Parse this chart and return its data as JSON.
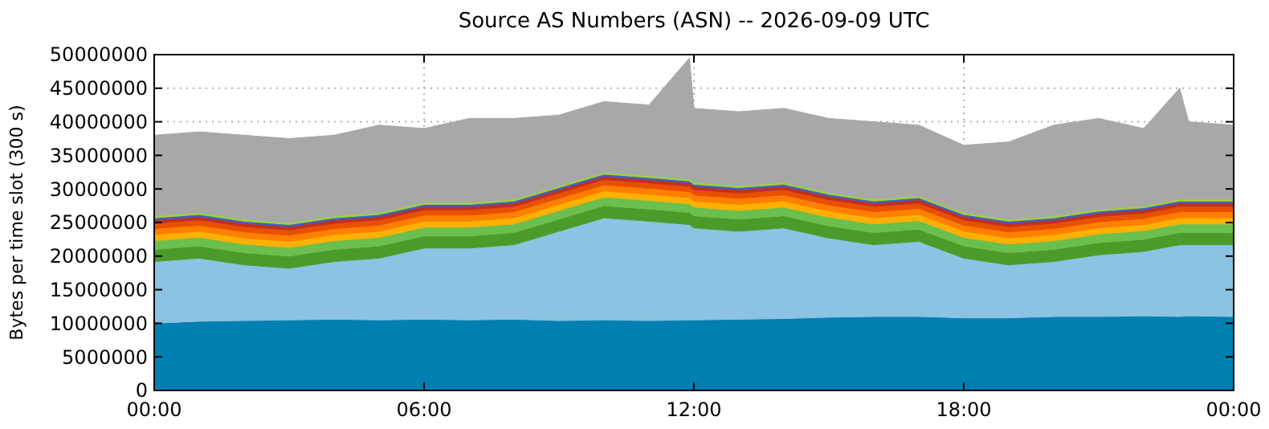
{
  "chart_data": {
    "type": "area",
    "stacked": true,
    "title": "Source AS Numbers (ASN) -- 2026-09-09 UTC",
    "ylabel": "Bytes per time slot (300 s)",
    "x": [
      0,
      1,
      2,
      3,
      4,
      5,
      6,
      7,
      8,
      9,
      10,
      11,
      11.9,
      12,
      13,
      14,
      15,
      16,
      17,
      18,
      19,
      20,
      21,
      22,
      22.8,
      23,
      24
    ],
    "xlim": [
      0,
      24
    ],
    "xticks": [
      {
        "value": 0,
        "label": "00:00"
      },
      {
        "value": 6,
        "label": "06:00"
      },
      {
        "value": 12,
        "label": "12:00"
      },
      {
        "value": 18,
        "label": "18:00"
      },
      {
        "value": 24,
        "label": "00:00"
      }
    ],
    "ylim": [
      0,
      50000000
    ],
    "yticks": [
      0,
      5000000,
      10000000,
      15000000,
      20000000,
      25000000,
      30000000,
      35000000,
      40000000,
      45000000,
      50000000
    ],
    "grid": true,
    "series": [
      {
        "color": "#0080b0",
        "values": [
          10000000,
          10300000,
          10400000,
          10500000,
          10600000,
          10500000,
          10600000,
          10500000,
          10600000,
          10400000,
          10500000,
          10400000,
          10500000,
          10500000,
          10600000,
          10700000,
          10900000,
          11000000,
          11000000,
          10800000,
          10800000,
          11000000,
          11000000,
          11100000,
          11000000,
          11100000,
          11000000
        ]
      },
      {
        "color": "#8cc2e2",
        "values": [
          9200000,
          9400000,
          8300000,
          7700000,
          8600000,
          9200000,
          10600000,
          10700000,
          11100000,
          13300000,
          15200000,
          14800000,
          14200000,
          13700000,
          13100000,
          13500000,
          11800000,
          10700000,
          11200000,
          8900000,
          7900000,
          8200000,
          9200000,
          9600000,
          10700000,
          10600000,
          10700000
        ]
      },
      {
        "color": "#4c9a2a",
        "values": [
          1800000,
          1800000,
          1800000,
          1800000,
          1800000,
          1800000,
          1800000,
          1800000,
          1800000,
          1800000,
          1800000,
          1800000,
          1800000,
          1800000,
          1800000,
          1800000,
          1800000,
          1800000,
          1800000,
          1800000,
          1800000,
          1800000,
          1800000,
          1800000,
          1800000,
          1800000,
          1800000
        ]
      },
      {
        "color": "#6bbf4e",
        "values": [
          1300000,
          1300000,
          1300000,
          1300000,
          1300000,
          1300000,
          1300000,
          1300000,
          1300000,
          1300000,
          1300000,
          1300000,
          1300000,
          1300000,
          1300000,
          1300000,
          1300000,
          1300000,
          1300000,
          1300000,
          1300000,
          1300000,
          1300000,
          1300000,
          1300000,
          1300000,
          1300000
        ]
      },
      {
        "color": "#ffb000",
        "values": [
          900000,
          900000,
          900000,
          900000,
          900000,
          900000,
          900000,
          900000,
          900000,
          900000,
          900000,
          900000,
          900000,
          900000,
          900000,
          900000,
          900000,
          900000,
          900000,
          900000,
          900000,
          900000,
          900000,
          900000,
          900000,
          900000,
          900000
        ]
      },
      {
        "color": "#ff8000",
        "values": [
          900000,
          900000,
          900000,
          900000,
          900000,
          900000,
          900000,
          900000,
          900000,
          900000,
          900000,
          900000,
          900000,
          900000,
          900000,
          900000,
          900000,
          900000,
          900000,
          900000,
          900000,
          900000,
          900000,
          900000,
          900000,
          900000,
          900000
        ]
      },
      {
        "color": "#e85000",
        "values": [
          800000,
          800000,
          800000,
          800000,
          800000,
          800000,
          800000,
          800000,
          800000,
          800000,
          800000,
          800000,
          800000,
          800000,
          800000,
          800000,
          800000,
          800000,
          800000,
          800000,
          800000,
          800000,
          800000,
          800000,
          800000,
          800000,
          800000
        ]
      },
      {
        "color": "#c03020",
        "values": [
          500000,
          500000,
          500000,
          500000,
          500000,
          500000,
          500000,
          500000,
          500000,
          500000,
          500000,
          500000,
          500000,
          500000,
          500000,
          500000,
          500000,
          500000,
          500000,
          500000,
          500000,
          500000,
          500000,
          500000,
          500000,
          500000,
          500000
        ]
      },
      {
        "color": "#4060c0",
        "values": [
          300000,
          300000,
          300000,
          300000,
          300000,
          300000,
          300000,
          300000,
          300000,
          300000,
          300000,
          300000,
          300000,
          300000,
          300000,
          300000,
          300000,
          300000,
          300000,
          300000,
          300000,
          300000,
          300000,
          300000,
          300000,
          300000,
          300000
        ]
      },
      {
        "color": "#a0d040",
        "values": [
          300000,
          300000,
          300000,
          300000,
          300000,
          300000,
          300000,
          300000,
          300000,
          300000,
          300000,
          300000,
          300000,
          300000,
          300000,
          300000,
          300000,
          300000,
          300000,
          300000,
          300000,
          300000,
          300000,
          300000,
          300000,
          300000,
          300000
        ]
      },
      {
        "color": "#a8a8a8",
        "values": [
          12000000,
          12000000,
          12500000,
          12500000,
          12000000,
          13000000,
          11000000,
          12500000,
          12000000,
          10500000,
          10500000,
          10500000,
          18000000,
          11000000,
          11000000,
          11000000,
          11000000,
          11500000,
          10500000,
          10000000,
          11500000,
          13500000,
          13500000,
          11500000,
          16500000,
          11500000,
          11000000
        ]
      }
    ]
  }
}
